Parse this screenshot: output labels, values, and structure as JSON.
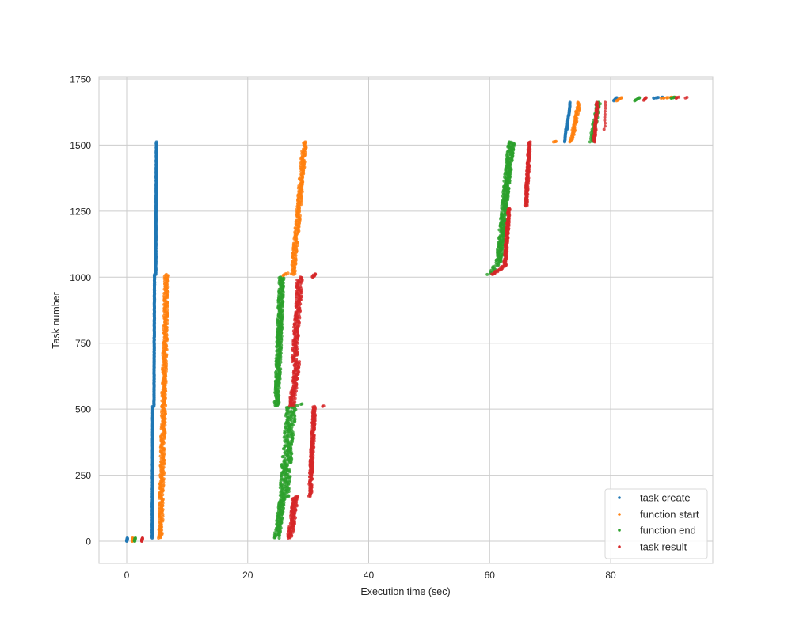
{
  "chart_data": {
    "type": "scatter",
    "title": "",
    "xlabel": "Execution time (sec)",
    "ylabel": "Task number",
    "xlim": [
      -4.5,
      97
    ],
    "ylim": [
      -80,
      1760
    ],
    "xticks": [
      0,
      20,
      40,
      60,
      80
    ],
    "yticks": [
      0,
      250,
      500,
      750,
      1000,
      1250,
      1500,
      1750
    ],
    "grid": true,
    "legend_position": "lower right",
    "legend": [
      "task create",
      "function start",
      "function end",
      "task result"
    ],
    "series": [
      {
        "name": "task create",
        "color": "#1f77b4",
        "segments": [
          {
            "x": [
              0.0,
              0.1
            ],
            "y": [
              0,
              12
            ],
            "n": 12,
            "jitter": 0.05
          },
          {
            "x": [
              4.2,
              4.3
            ],
            "y": [
              12,
              510
            ],
            "n": 200,
            "jitter": 0.03
          },
          {
            "x": [
              4.5,
              4.6
            ],
            "y": [
              510,
              1010
            ],
            "n": 200,
            "jitter": 0.03
          },
          {
            "x": [
              4.8,
              4.9
            ],
            "y": [
              1010,
              1512
            ],
            "n": 200,
            "jitter": 0.03
          },
          {
            "x": [
              72.4,
              72.6
            ],
            "y": [
              1512,
              1560
            ],
            "n": 20,
            "jitter": 0.03
          },
          {
            "x": [
              72.8,
              73.0
            ],
            "y": [
              1560,
              1612
            ],
            "n": 20,
            "jitter": 0.03
          },
          {
            "x": [
              73.1,
              73.3
            ],
            "y": [
              1612,
              1662
            ],
            "n": 20,
            "jitter": 0.03
          },
          {
            "x": [
              80.5,
              81.0
            ],
            "y": [
              1668,
              1680
            ],
            "n": 8,
            "jitter": 0.05
          },
          {
            "x": [
              87.0,
              88.5
            ],
            "y": [
              1678,
              1682
            ],
            "n": 8,
            "jitter": 0.2
          }
        ]
      },
      {
        "name": "function start",
        "color": "#ff7f0e",
        "segments": [
          {
            "x": [
              0.9,
              1.0
            ],
            "y": [
              0,
              12
            ],
            "n": 12,
            "jitter": 0.05
          },
          {
            "x": [
              5.6,
              6.6
            ],
            "y": [
              12,
              1010
            ],
            "n": 500,
            "jitter": 0.35
          },
          {
            "x": [
              27.5,
              29.4
            ],
            "y": [
              1010,
              1512
            ],
            "n": 260,
            "jitter": 0.35
          },
          {
            "x": [
              25.8,
              26.5
            ],
            "y": [
              1005,
              1015
            ],
            "n": 6,
            "jitter": 0.2
          },
          {
            "x": [
              70.5,
              71.0
            ],
            "y": [
              1512,
              1514
            ],
            "n": 4,
            "jitter": 0.1
          },
          {
            "x": [
              73.5,
              74.8
            ],
            "y": [
              1512,
              1662
            ],
            "n": 70,
            "jitter": 0.25
          },
          {
            "x": [
              81.0,
              81.8
            ],
            "y": [
              1668,
              1680
            ],
            "n": 8,
            "jitter": 0.05
          },
          {
            "x": [
              88.5,
              90.5
            ],
            "y": [
              1678,
              1682
            ],
            "n": 10,
            "jitter": 0.2
          }
        ]
      },
      {
        "name": "function end",
        "color": "#2ca02c",
        "segments": [
          {
            "x": [
              1.3,
              1.4
            ],
            "y": [
              0,
              12
            ],
            "n": 12,
            "jitter": 0.05
          },
          {
            "x": [
              24.8,
              25.8
            ],
            "y": [
              12,
              170
            ],
            "n": 120,
            "jitter": 0.45
          },
          {
            "x": [
              26.0,
              27.2
            ],
            "y": [
              170,
              510
            ],
            "n": 260,
            "jitter": 0.8
          },
          {
            "x": [
              24.8,
              25.6
            ],
            "y": [
              512,
              1000
            ],
            "n": 380,
            "jitter": 0.4
          },
          {
            "x": [
              27.0,
              28.5
            ],
            "y": [
              505,
              520
            ],
            "n": 10,
            "jitter": 0.5
          },
          {
            "x": [
              60.0,
              61.5
            ],
            "y": [
              1010,
              1060
            ],
            "n": 20,
            "jitter": 0.4
          },
          {
            "x": [
              61.5,
              62.5
            ],
            "y": [
              1060,
              1270
            ],
            "n": 170,
            "jitter": 0.5
          },
          {
            "x": [
              62.4,
              63.6
            ],
            "y": [
              1270,
              1512
            ],
            "n": 220,
            "jitter": 0.5
          },
          {
            "x": [
              76.8,
              78.0
            ],
            "y": [
              1512,
              1662
            ],
            "n": 80,
            "jitter": 0.35
          },
          {
            "x": [
              84.0,
              84.8
            ],
            "y": [
              1668,
              1680
            ],
            "n": 8,
            "jitter": 0.05
          },
          {
            "x": [
              90.0,
              90.6
            ],
            "y": [
              1678,
              1682
            ],
            "n": 6,
            "jitter": 0.1
          }
        ]
      },
      {
        "name": "task result",
        "color": "#d62728",
        "segments": [
          {
            "x": [
              2.5,
              2.6
            ],
            "y": [
              0,
              12
            ],
            "n": 12,
            "jitter": 0.05
          },
          {
            "x": [
              27.0,
              27.9
            ],
            "y": [
              12,
              170
            ],
            "n": 110,
            "jitter": 0.45
          },
          {
            "x": [
              30.3,
              31.0
            ],
            "y": [
              170,
              510
            ],
            "n": 200,
            "jitter": 0.25
          },
          {
            "x": [
              27.3,
              28.2
            ],
            "y": [
              512,
              680
            ],
            "n": 110,
            "jitter": 0.45
          },
          {
            "x": [
              27.7,
              28.6
            ],
            "y": [
              680,
              1000
            ],
            "n": 180,
            "jitter": 0.45
          },
          {
            "x": [
              30.6,
              31.2
            ],
            "y": [
              1000,
              1012
            ],
            "n": 10,
            "jitter": 0.2
          },
          {
            "x": [
              32.4,
              32.6
            ],
            "y": [
              510,
              512
            ],
            "n": 2,
            "jitter": 0.05
          },
          {
            "x": [
              60.5,
              62.2
            ],
            "y": [
              1010,
              1040
            ],
            "n": 20,
            "jitter": 0.3
          },
          {
            "x": [
              62.5,
              63.2
            ],
            "y": [
              1040,
              1260
            ],
            "n": 160,
            "jitter": 0.2
          },
          {
            "x": [
              66.0,
              66.6
            ],
            "y": [
              1270,
              1512
            ],
            "n": 150,
            "jitter": 0.2
          },
          {
            "x": [
              77.3,
              77.8
            ],
            "y": [
              1512,
              1662
            ],
            "n": 70,
            "jitter": 0.15
          },
          {
            "x": [
              79.0,
              79.2
            ],
            "y": [
              1560,
              1662
            ],
            "n": 10,
            "jitter": 0.1
          },
          {
            "x": [
              85.5,
              85.9
            ],
            "y": [
              1670,
              1680
            ],
            "n": 6,
            "jitter": 0.05
          },
          {
            "x": [
              90.8,
              91.2
            ],
            "y": [
              1678,
              1682
            ],
            "n": 4,
            "jitter": 0.1
          },
          {
            "x": [
              92.4,
              92.6
            ],
            "y": [
              1679,
              1681
            ],
            "n": 2,
            "jitter": 0.05
          }
        ]
      }
    ]
  },
  "axes": {
    "xlabel": "Execution time (sec)",
    "ylabel": "Task number",
    "xtick_labels": [
      "0",
      "20",
      "40",
      "60",
      "80"
    ],
    "ytick_labels": [
      "0",
      "250",
      "500",
      "750",
      "1000",
      "1250",
      "1500",
      "1750"
    ]
  },
  "legend": {
    "items": [
      {
        "label": "task create",
        "color": "#1f77b4"
      },
      {
        "label": "function start",
        "color": "#ff7f0e"
      },
      {
        "label": "function end",
        "color": "#2ca02c"
      },
      {
        "label": "task result",
        "color": "#d62728"
      }
    ]
  }
}
